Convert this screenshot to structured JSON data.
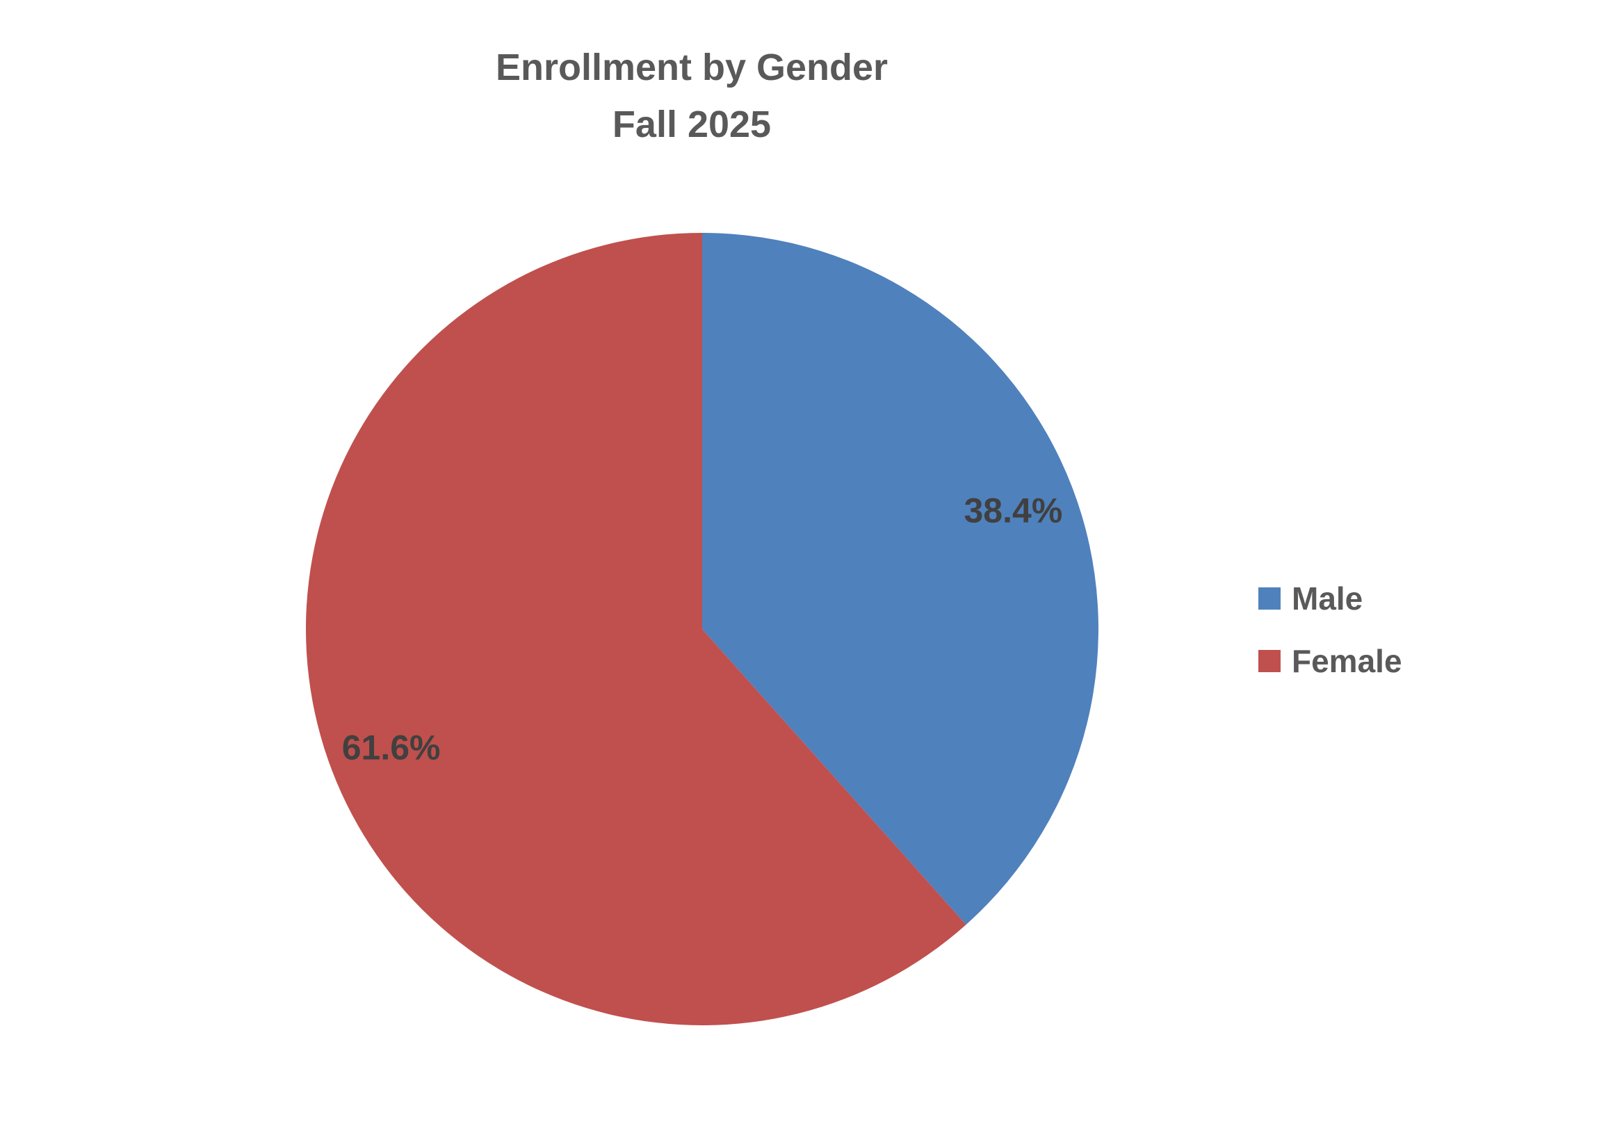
{
  "title": {
    "line1": "Enrollment by Gender",
    "line2": "Fall 2025",
    "color": "#595959"
  },
  "legend": {
    "position": "right",
    "items": [
      {
        "label": "Male",
        "color": "#4F81BD"
      },
      {
        "label": "Female",
        "color": "#C0504D"
      }
    ]
  },
  "chart_data": {
    "type": "pie",
    "title": "Enrollment by Gender",
    "subtitle": "Fall 2025",
    "categories": [
      "Male",
      "Female"
    ],
    "values": [
      38.4,
      61.6
    ],
    "labels": [
      "38.4%",
      "61.6%"
    ],
    "colors": [
      "#4F81BD",
      "#C0504D"
    ],
    "label_color": "#404040",
    "start_angle_deg": 0,
    "direction": "clockwise",
    "legend_position": "right",
    "label_radius_fraction": 0.84,
    "background": "#FFFFFF"
  }
}
